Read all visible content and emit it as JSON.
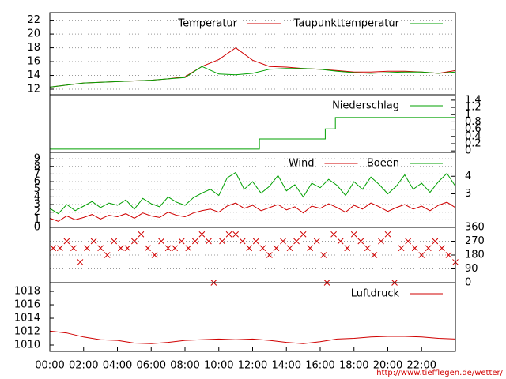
{
  "footer": "http://www.tiefflegen.de/wetter/",
  "chart_data": [
    {
      "type": "line",
      "xlim": [
        0,
        24
      ],
      "ylim": [
        11.2,
        23.1
      ],
      "yticks": [
        12,
        14,
        16,
        18,
        20,
        22
      ],
      "grid": true,
      "x": [
        0,
        1,
        2,
        3,
        4,
        5,
        6,
        7,
        8,
        9,
        10,
        11,
        12,
        13,
        14,
        15,
        16,
        17,
        18,
        19,
        20,
        21,
        22,
        23,
        24
      ],
      "series": [
        {
          "name": "Temperatur",
          "color": "#d00000",
          "values": [
            12.3,
            12.6,
            12.9,
            13.0,
            13.1,
            13.2,
            13.3,
            13.5,
            13.8,
            15.3,
            16.3,
            18.0,
            16.2,
            15.3,
            15.2,
            15.0,
            14.9,
            14.7,
            14.5,
            14.5,
            14.6,
            14.6,
            14.5,
            14.3,
            14.7
          ]
        },
        {
          "name": "Taupunkttemperatur",
          "color": "#00a000",
          "values": [
            12.3,
            12.6,
            12.9,
            13.0,
            13.1,
            13.2,
            13.3,
            13.5,
            13.7,
            15.3,
            14.2,
            14.1,
            14.3,
            14.9,
            15.0,
            15.0,
            14.9,
            14.6,
            14.4,
            14.3,
            14.4,
            14.5,
            14.5,
            14.3,
            14.5
          ]
        }
      ]
    },
    {
      "type": "line",
      "xlim": [
        0,
        24
      ],
      "ylim": [
        -0.04,
        1.55
      ],
      "yticks": [
        0,
        0.2,
        0.4,
        0.6,
        0.8,
        1,
        1.2,
        1.4
      ],
      "y_axis_side": "right",
      "grid": false,
      "x": [
        0,
        12.4,
        12.4,
        16.3,
        16.3,
        16.9,
        16.9,
        24
      ],
      "series": [
        {
          "name": "Niederschlag",
          "color": "#00a000",
          "values": [
            0.05,
            0.05,
            0.33,
            0.33,
            0.61,
            0.61,
            0.92,
            0.92
          ]
        }
      ]
    },
    {
      "type": "line",
      "xlim": [
        0,
        24
      ],
      "ylim": [
        0,
        9.84
      ],
      "yticks": [
        0,
        1,
        2,
        3,
        4,
        5,
        6,
        7,
        8,
        9
      ],
      "y2lim": [
        1.09,
        5.36
      ],
      "y2ticks": [
        3,
        4
      ],
      "grid": true,
      "x": [
        0,
        0.5,
        1,
        1.5,
        2,
        2.5,
        3,
        3.5,
        4,
        4.5,
        5,
        5.5,
        6,
        6.5,
        7,
        7.5,
        8,
        8.5,
        9,
        9.5,
        10,
        10.5,
        11,
        11.5,
        12,
        12.5,
        13,
        13.5,
        14,
        14.5,
        15,
        15.5,
        16,
        16.5,
        17,
        17.5,
        18,
        18.5,
        19,
        19.5,
        20,
        20.5,
        21,
        21.5,
        22,
        22.5,
        23,
        23.5,
        24
      ],
      "series": [
        {
          "name": "Wind",
          "color": "#d00000",
          "values": [
            1.2,
            0.8,
            1.5,
            1.0,
            1.3,
            1.7,
            1.1,
            1.6,
            1.4,
            1.8,
            1.2,
            1.9,
            1.5,
            1.3,
            2.0,
            1.6,
            1.4,
            1.9,
            2.2,
            2.4,
            2.0,
            2.8,
            3.2,
            2.5,
            2.9,
            2.2,
            2.6,
            3.0,
            2.3,
            2.7,
            1.9,
            2.8,
            2.5,
            3.1,
            2.6,
            2.0,
            2.9,
            2.4,
            3.2,
            2.7,
            2.1,
            2.6,
            3.0,
            2.4,
            2.8,
            2.2,
            2.9,
            3.3,
            2.6
          ]
        },
        {
          "name": "Boeen",
          "color": "#00a000",
          "values": [
            2.5,
            1.8,
            3.0,
            2.2,
            2.8,
            3.4,
            2.6,
            3.2,
            2.9,
            3.6,
            2.4,
            3.8,
            3.1,
            2.7,
            4.0,
            3.3,
            2.9,
            3.9,
            4.5,
            5.0,
            4.2,
            6.5,
            7.2,
            5.0,
            6.0,
            4.5,
            5.4,
            6.8,
            4.8,
            5.6,
            4.0,
            5.8,
            5.2,
            6.3,
            5.5,
            4.2,
            6.0,
            5.0,
            6.6,
            5.6,
            4.4,
            5.4,
            6.9,
            5.0,
            5.8,
            4.6,
            6.0,
            7.1,
            5.4
          ]
        }
      ]
    },
    {
      "type": "scatter",
      "xlim": [
        0,
        24
      ],
      "ylim": [
        0,
        360
      ],
      "yticks": [
        0,
        90,
        180,
        270,
        360
      ],
      "y_axis_side": "right",
      "grid": true,
      "color": "#d00000",
      "x": [
        0.2,
        0.6,
        1.0,
        1.4,
        1.8,
        2.2,
        2.6,
        3.0,
        3.4,
        3.8,
        4.2,
        4.6,
        5.0,
        5.4,
        5.8,
        6.2,
        6.6,
        7.0,
        7.4,
        7.8,
        8.2,
        8.6,
        9.0,
        9.4,
        9.7,
        10.2,
        10.6,
        11.0,
        11.4,
        11.8,
        12.2,
        12.6,
        13.0,
        13.4,
        13.8,
        14.2,
        14.6,
        15.0,
        15.4,
        15.8,
        16.2,
        16.4,
        16.8,
        17.2,
        17.6,
        18.0,
        18.4,
        18.8,
        19.2,
        19.6,
        20.0,
        20.4,
        20.8,
        21.2,
        21.6,
        22.0,
        22.4,
        22.8,
        23.2,
        23.6,
        24.0
      ],
      "values": [
        225,
        225,
        270,
        225,
        134,
        225,
        270,
        225,
        180,
        270,
        225,
        225,
        270,
        315,
        225,
        180,
        270,
        225,
        225,
        270,
        225,
        270,
        315,
        270,
        0,
        270,
        315,
        315,
        270,
        225,
        270,
        225,
        180,
        225,
        270,
        225,
        270,
        315,
        225,
        270,
        180,
        0,
        315,
        270,
        225,
        315,
        270,
        225,
        180,
        270,
        315,
        0,
        225,
        270,
        225,
        180,
        225,
        270,
        225,
        180,
        134
      ]
    },
    {
      "type": "line",
      "xlim": [
        0,
        24
      ],
      "ylim": [
        1009.06,
        1019.3
      ],
      "yticks": [
        1010,
        1012,
        1014,
        1016,
        1018
      ],
      "grid": false,
      "xticks": [
        {
          "value": 0,
          "label": "00:00"
        },
        {
          "value": 2,
          "label": "02:00"
        },
        {
          "value": 4,
          "label": "04:00"
        },
        {
          "value": 6,
          "label": "06:00"
        },
        {
          "value": 8,
          "label": "08:00"
        },
        {
          "value": 10,
          "label": "10:00"
        },
        {
          "value": 12,
          "label": "12:00"
        },
        {
          "value": 14,
          "label": "14:00"
        },
        {
          "value": 16,
          "label": "16:00"
        },
        {
          "value": 18,
          "label": "18:00"
        },
        {
          "value": 20,
          "label": "20:00"
        },
        {
          "value": 22,
          "label": "22:00"
        }
      ],
      "x": [
        0,
        1,
        2,
        3,
        4,
        5,
        6,
        7,
        8,
        9,
        10,
        11,
        12,
        13,
        14,
        15,
        16,
        17,
        18,
        19,
        20,
        21,
        22,
        23,
        24
      ],
      "series": [
        {
          "name": "Luftdruck",
          "color": "#d00000",
          "values": [
            1012.1,
            1011.8,
            1011.2,
            1010.8,
            1010.7,
            1010.3,
            1010.2,
            1010.4,
            1010.7,
            1010.8,
            1010.9,
            1010.8,
            1010.9,
            1010.7,
            1010.4,
            1010.2,
            1010.5,
            1010.9,
            1011.0,
            1011.2,
            1011.3,
            1011.3,
            1011.2,
            1011.0,
            1010.9
          ]
        }
      ]
    }
  ]
}
